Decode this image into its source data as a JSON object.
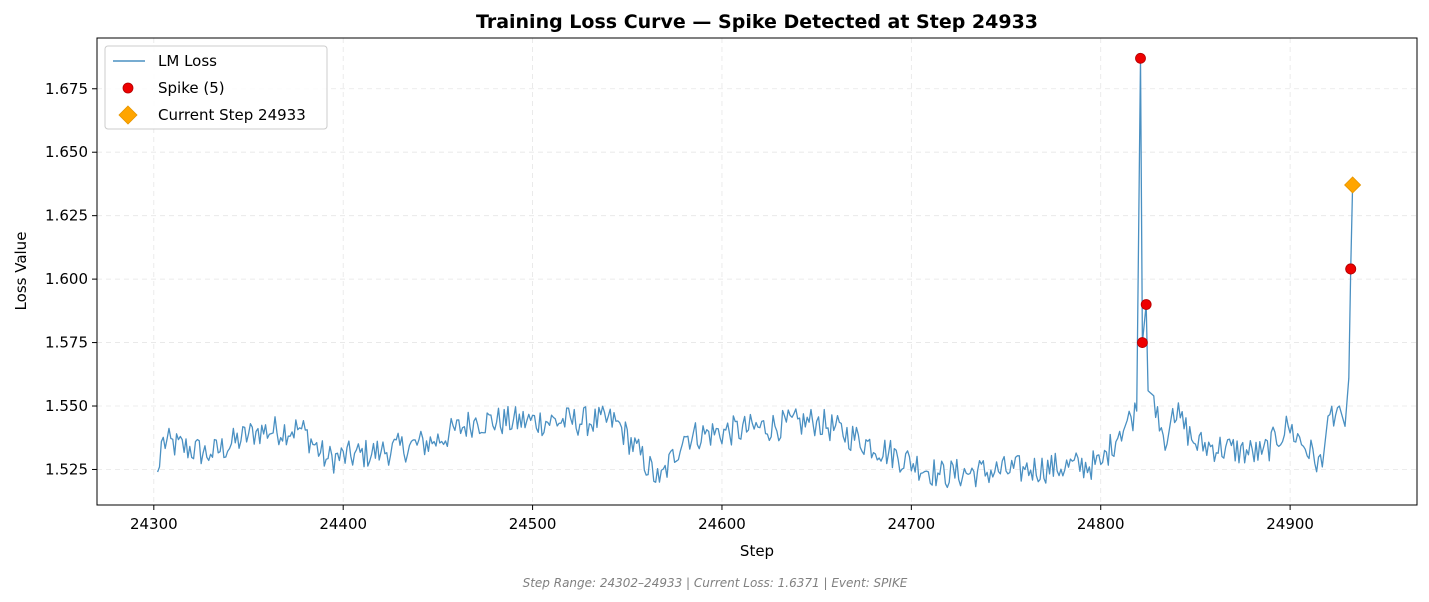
{
  "chart_data": {
    "type": "line",
    "title": "Training Loss Curve — Spike Detected at Step 24933",
    "xlabel": "Step",
    "ylabel": "Loss Value",
    "xlim": [
      24270,
      24967
    ],
    "ylim": [
      1.511,
      1.695
    ],
    "x_ticks": [
      24300,
      24400,
      24500,
      24600,
      24700,
      24800,
      24900
    ],
    "y_ticks": [
      1.525,
      1.55,
      1.575,
      1.6,
      1.625,
      1.65,
      1.675
    ],
    "y_tick_labels": [
      "1.525",
      "1.550",
      "1.575",
      "1.600",
      "1.625",
      "1.650",
      "1.675"
    ],
    "grid": true,
    "legend_position": "top-left",
    "series": [
      {
        "name": "LM Loss",
        "kind": "line",
        "color": "#4a90c2",
        "x_start": 24302,
        "x_end": 24933,
        "key_points": [
          {
            "x": 24302,
            "y": 1.524
          },
          {
            "x": 24303,
            "y": 1.526
          },
          {
            "x": 24304,
            "y": 1.536
          },
          {
            "x": 24330,
            "y": 1.531
          },
          {
            "x": 24354,
            "y": 1.54
          },
          {
            "x": 24378,
            "y": 1.541
          },
          {
            "x": 24391,
            "y": 1.529
          },
          {
            "x": 24420,
            "y": 1.532
          },
          {
            "x": 24448,
            "y": 1.536
          },
          {
            "x": 24469,
            "y": 1.544
          },
          {
            "x": 24544,
            "y": 1.544
          },
          {
            "x": 24567,
            "y": 1.52
          },
          {
            "x": 24580,
            "y": 1.538
          },
          {
            "x": 24650,
            "y": 1.544
          },
          {
            "x": 24715,
            "y": 1.523
          },
          {
            "x": 24760,
            "y": 1.525
          },
          {
            "x": 24800,
            "y": 1.527
          },
          {
            "x": 24810,
            "y": 1.54
          },
          {
            "x": 24819,
            "y": 1.548
          },
          {
            "x": 24821,
            "y": 1.687
          },
          {
            "x": 24822,
            "y": 1.575
          },
          {
            "x": 24824,
            "y": 1.59
          },
          {
            "x": 24825,
            "y": 1.556
          },
          {
            "x": 24828,
            "y": 1.554
          },
          {
            "x": 24835,
            "y": 1.535
          },
          {
            "x": 24838,
            "y": 1.549
          },
          {
            "x": 24850,
            "y": 1.535
          },
          {
            "x": 24885,
            "y": 1.531
          },
          {
            "x": 24899,
            "y": 1.542
          },
          {
            "x": 24917,
            "y": 1.526
          },
          {
            "x": 24920,
            "y": 1.546
          },
          {
            "x": 24926,
            "y": 1.55
          },
          {
            "x": 24929,
            "y": 1.542
          },
          {
            "x": 24931,
            "y": 1.561
          },
          {
            "x": 24932,
            "y": 1.604
          },
          {
            "x": 24933,
            "y": 1.6371
          }
        ]
      },
      {
        "name": "Spike (5)",
        "kind": "scatter",
        "color": "#ee0000",
        "points": [
          {
            "x": 24821,
            "y": 1.687
          },
          {
            "x": 24822,
            "y": 1.575
          },
          {
            "x": 24824,
            "y": 1.59
          },
          {
            "x": 24932,
            "y": 1.604
          },
          {
            "x": 24932,
            "y": 1.604
          }
        ]
      },
      {
        "name": "Current Step 24933",
        "kind": "marker",
        "color": "#ffa500",
        "points": [
          {
            "x": 24933,
            "y": 1.6371
          }
        ]
      }
    ],
    "footer": "Step Range: 24302–24933 | Current Loss: 1.6371 | Event: SPIKE"
  }
}
